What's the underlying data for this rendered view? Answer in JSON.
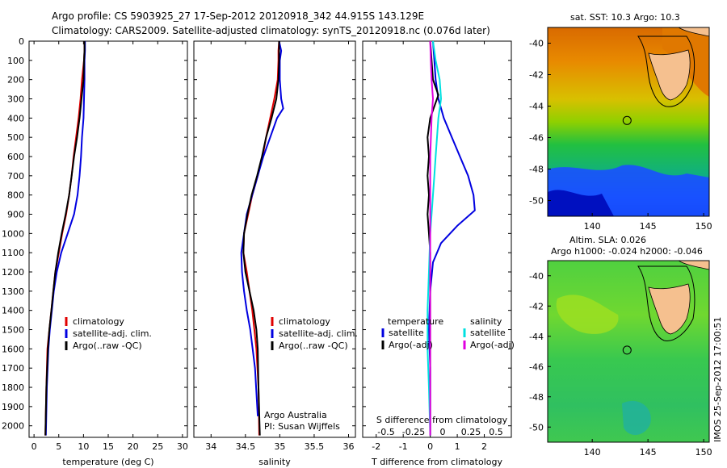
{
  "figure": {
    "title_line1": "Argo profile: CS 5903925_27 17-Sep-2012 20120918_342 44.915S 143.129E",
    "title_line2": "Climatology: CARS2009. Satellite-adjusted climatology: synTS_20120918.nc (0.076d later)",
    "side_stamp": "IMOS 25-Sep-2012 17:00:51",
    "credit_line1": "Argo Australia",
    "credit_line2": "PI: Susan Wijffels"
  },
  "colors": {
    "climatology": "#e00000",
    "satellite": "#0000e0",
    "argo": "#000000",
    "sal_satellite": "#00e0e0",
    "sal_argo": "#e000e0",
    "land": "#f5c08f"
  },
  "chart_data": [
    {
      "type": "line",
      "id": "temperature",
      "xlabel": "temperature (deg C)",
      "ylabel": "",
      "xlim": [
        -1,
        31
      ],
      "ylim": [
        2060,
        0
      ],
      "xticks": [
        0,
        5,
        10,
        15,
        20,
        25,
        30
      ],
      "yticks": [
        0,
        100,
        200,
        300,
        400,
        500,
        600,
        700,
        800,
        900,
        1000,
        1100,
        1200,
        1300,
        1400,
        1500,
        1600,
        1700,
        1800,
        1900,
        2000
      ],
      "legend": [
        "climatology",
        "satellite-adj. clim.",
        "Argo(..raw -QC)"
      ],
      "series": [
        {
          "name": "climatology",
          "color": "#e00000",
          "x": [
            10.2,
            10.2,
            10.1,
            9.7,
            9.4,
            9.0,
            8.5,
            8.0,
            7.6,
            7.1,
            6.5,
            5.7,
            5.0,
            4.3,
            3.9,
            3.5,
            3.1,
            2.7,
            2.5,
            2.3
          ],
          "y": [
            0,
            50,
            100,
            200,
            300,
            400,
            500,
            600,
            700,
            800,
            900,
            1000,
            1100,
            1200,
            1300,
            1400,
            1500,
            1600,
            1800,
            2050
          ]
        },
        {
          "name": "satellite-adj. clim.",
          "color": "#0000e0",
          "x": [
            10.3,
            10.3,
            10.2,
            10.2,
            10.1,
            10.0,
            9.7,
            9.5,
            9.2,
            8.8,
            8.1,
            6.8,
            5.5,
            4.6,
            4.0,
            3.6,
            3.2,
            2.9,
            2.6,
            2.4
          ],
          "y": [
            0,
            50,
            100,
            200,
            300,
            400,
            500,
            600,
            700,
            800,
            900,
            1000,
            1100,
            1200,
            1300,
            1400,
            1500,
            1600,
            1800,
            2050
          ]
        },
        {
          "name": "Argo(..raw -QC)",
          "color": "#000000",
          "x": [
            10.2,
            10.2,
            10.1,
            10.0,
            9.6,
            9.2,
            8.7,
            8.1,
            7.6,
            7.1,
            6.4,
            5.6,
            4.9,
            4.3,
            3.9,
            3.5,
            3.1,
            2.8,
            2.5,
            2.3
          ],
          "y": [
            0,
            50,
            100,
            200,
            300,
            400,
            500,
            600,
            700,
            800,
            900,
            1000,
            1100,
            1200,
            1300,
            1400,
            1500,
            1600,
            1800,
            2050
          ]
        }
      ]
    },
    {
      "type": "line",
      "id": "salinity",
      "xlabel": "salinity",
      "ylabel": "",
      "xlim": [
        33.75,
        36.1
      ],
      "ylim": [
        2060,
        0
      ],
      "xticks": [
        34,
        34.5,
        35,
        35.5,
        36
      ],
      "xtick_labels": [
        "34",
        "34.5",
        "35",
        "35.5",
        "36"
      ],
      "legend": [
        "climatology",
        "satellite-adj. clim.",
        "Argo(..raw -QC)"
      ],
      "series": [
        {
          "name": "climatology",
          "color": "#e00000",
          "x": [
            34.99,
            34.98,
            34.98,
            34.97,
            34.92,
            34.86,
            34.8,
            34.75,
            34.68,
            34.6,
            34.54,
            34.48,
            34.47,
            34.52,
            34.56,
            34.6,
            34.63,
            34.66,
            34.69,
            34.7
          ],
          "y": [
            0,
            50,
            100,
            200,
            300,
            400,
            500,
            600,
            700,
            800,
            900,
            1000,
            1100,
            1200,
            1300,
            1400,
            1500,
            1600,
            1800,
            2050
          ]
        },
        {
          "name": "satellite-adj. clim.",
          "color": "#0000e0",
          "x": [
            34.99,
            35.02,
            35.0,
            35.0,
            35.02,
            35.05,
            34.96,
            34.86,
            34.76,
            34.68,
            34.6,
            34.52,
            34.48,
            34.44,
            34.45,
            34.48,
            34.52,
            34.57,
            34.64,
            34.68
          ],
          "y": [
            0,
            50,
            100,
            200,
            300,
            350,
            400,
            500,
            600,
            700,
            800,
            900,
            1000,
            1100,
            1200,
            1300,
            1400,
            1500,
            1700,
            1950
          ]
        },
        {
          "name": "Argo(..raw -QC)",
          "color": "#000000",
          "x": [
            34.99,
            34.99,
            34.99,
            34.98,
            34.95,
            34.88,
            34.8,
            34.74,
            34.67,
            34.59,
            34.53,
            34.48,
            34.47,
            34.5,
            34.56,
            34.62,
            34.66,
            34.68,
            34.69,
            34.71
          ],
          "y": [
            0,
            50,
            100,
            200,
            300,
            400,
            500,
            600,
            700,
            800,
            900,
            1000,
            1100,
            1200,
            1300,
            1400,
            1500,
            1600,
            1800,
            2050
          ]
        }
      ]
    },
    {
      "type": "line",
      "id": "differences",
      "xlabel": "T difference from climatology",
      "top_label": "S difference from climatology",
      "ylabel": "",
      "xlim": [
        -2.5,
        3.0
      ],
      "ylim": [
        2060,
        0
      ],
      "xticks": [
        -2,
        -1,
        0,
        1,
        2
      ],
      "xtick_labels": [
        "-2",
        "-1",
        "0",
        "1",
        "2"
      ],
      "s_ticks": [
        -0.5,
        -0.25,
        0,
        0.25,
        0.5
      ],
      "s_tick_labels": [
        "-0.5",
        "-0.25",
        "0",
        "0.25",
        "0.5"
      ],
      "legend_temperature_title": "temperature",
      "legend_salinity_title": "salinity",
      "legend": [
        "satellite",
        "Argo(-adj)",
        "satellite",
        "Argo(-adj)"
      ],
      "series": [
        {
          "name": "temperature satellite",
          "color": "#0000e0",
          "x": [
            0.1,
            0.15,
            0.2,
            0.3,
            0.5,
            0.8,
            1.1,
            1.4,
            1.6,
            1.65,
            1.0,
            0.4,
            0.1,
            0.0,
            -0.05,
            0.0,
            0.0,
            0.0,
            0.0
          ],
          "y": [
            0,
            100,
            200,
            300,
            400,
            500,
            600,
            700,
            800,
            880,
            960,
            1050,
            1150,
            1300,
            1500,
            1700,
            1850,
            1950,
            2050
          ]
        },
        {
          "name": "temperature Argo(-adj)",
          "color": "#000000",
          "x": [
            0.0,
            0.05,
            0.1,
            0.3,
            0.2,
            0.0,
            -0.1,
            -0.05,
            -0.1,
            -0.05,
            -0.1,
            -0.05,
            0.0,
            0.0,
            0.0,
            0.0,
            0.0,
            0.0
          ],
          "y": [
            0,
            100,
            200,
            280,
            320,
            400,
            500,
            600,
            700,
            800,
            900,
            1000,
            1100,
            1300,
            1500,
            1700,
            1900,
            2050
          ]
        },
        {
          "name": "salinity satellite",
          "color": "#00e0e0",
          "x": [
            0.1,
            0.2,
            0.35,
            0.4,
            0.3,
            0.25,
            0.2,
            0.15,
            0.1,
            0.05,
            0.0,
            -0.05,
            -0.1,
            -0.1,
            -0.05,
            0.0
          ],
          "y": [
            0,
            100,
            200,
            300,
            400,
            500,
            600,
            700,
            800,
            900,
            1000,
            1200,
            1400,
            1600,
            1800,
            2050
          ]
        },
        {
          "name": "salinity Argo(-adj)",
          "color": "#e000e0",
          "x": [
            0.0,
            0.02,
            0.05,
            0.1,
            0.05,
            0.0,
            0.0,
            0.0,
            0.0,
            0.0,
            0.0,
            0.0
          ],
          "y": [
            0,
            100,
            200,
            300,
            400,
            600,
            800,
            1000,
            1200,
            1500,
            1800,
            2050
          ]
        }
      ]
    },
    {
      "type": "heatmap",
      "id": "sst_map",
      "title": "sat. SST: 10.3  Argo: 10.3",
      "xlim": [
        136,
        150.5
      ],
      "ylim": [
        -51,
        -39
      ],
      "xticks": [
        140,
        145,
        150
      ],
      "yticks": [
        -40,
        -42,
        -44,
        -46,
        -48,
        -50
      ],
      "argo_position": {
        "lon": 143.129,
        "lat": -44.915
      }
    },
    {
      "type": "heatmap",
      "id": "sla_map",
      "title_line1": "Altim. SLA: 0.026",
      "title_line2": "Argo h1000: -0.024 h2000: -0.046",
      "xlim": [
        136,
        150.5
      ],
      "ylim": [
        -51,
        -39
      ],
      "xticks": [
        140,
        145,
        150
      ],
      "yticks": [
        -40,
        -42,
        -44,
        -46,
        -48,
        -50
      ],
      "argo_position": {
        "lon": 143.129,
        "lat": -44.915
      }
    }
  ]
}
